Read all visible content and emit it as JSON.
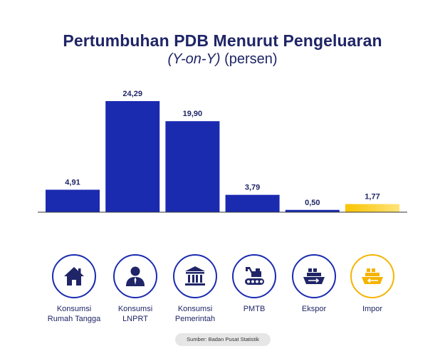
{
  "header": {
    "title": "Pertumbuhan PDB Menurut Pengeluaran",
    "subtitle_italic": "(Y-on-Y)",
    "subtitle_rest": " (persen)"
  },
  "colors": {
    "bar": "#1a2bb0",
    "bar_highlight": "#f4b400",
    "text": "#1f2566",
    "icon_circle": "#1a2bb0"
  },
  "chart_data": {
    "type": "bar",
    "title": "Pertumbuhan PDB Menurut Pengeluaran (Y-on-Y) (persen)",
    "categories": [
      "Konsumsi Rumah Tangga",
      "Konsumsi LNPRT",
      "Konsumsi Pemerintah",
      "PMTB",
      "Ekspor",
      "Impor"
    ],
    "values": [
      4.91,
      24.29,
      19.9,
      3.79,
      0.5,
      1.77
    ],
    "value_labels": [
      "4,91",
      "24,29",
      "19,90",
      "3,79",
      "0,50",
      "1,77"
    ],
    "highlight_index": 5,
    "ylim": [
      0,
      24.29
    ],
    "grid": false,
    "legend": "none"
  },
  "categories": [
    {
      "line1": "Konsumsi",
      "line2": "Rumah Tangga",
      "icon": "house-icon"
    },
    {
      "line1": "Konsumsi",
      "line2": "LNPRT",
      "icon": "person-icon"
    },
    {
      "line1": "Konsumsi",
      "line2": "Pemerintah",
      "icon": "government-building-icon"
    },
    {
      "line1": "PMTB",
      "line2": "",
      "icon": "excavator-icon"
    },
    {
      "line1": "Ekspor",
      "line2": "",
      "icon": "cargo-ship-export-icon"
    },
    {
      "line1": "Impor",
      "line2": "",
      "icon": "cargo-ship-import-icon"
    }
  ],
  "source": "Sumber: Badan Pusat Statistik"
}
